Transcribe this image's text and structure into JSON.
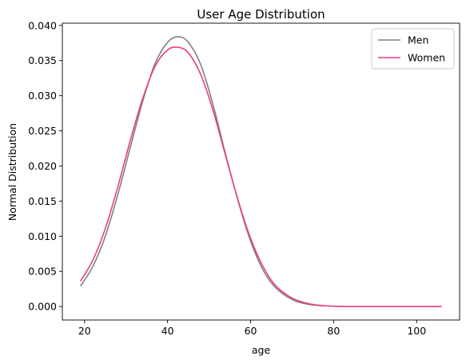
{
  "chart_data": {
    "type": "line",
    "title": "User Age Distribution",
    "xlabel": "age",
    "ylabel": "Normal Distribution",
    "xlim": [
      14.65,
      110.35
    ],
    "ylim": [
      -0.00192,
      0.04032
    ],
    "x_ticks": [
      20,
      40,
      60,
      80,
      100
    ],
    "y_ticks": [
      0.0,
      0.005,
      0.01,
      0.015,
      0.02,
      0.025,
      0.03,
      0.035,
      0.04
    ],
    "x_tick_labels": [
      "20",
      "40",
      "60",
      "80",
      "100"
    ],
    "y_tick_labels": [
      "0.000",
      "0.005",
      "0.010",
      "0.015",
      "0.020",
      "0.025",
      "0.030",
      "0.035",
      "0.040"
    ],
    "grid": false,
    "legend_position": "top-right",
    "x": [
      19,
      22,
      25,
      28,
      31,
      34,
      37,
      40,
      42.5,
      45,
      48,
      51,
      54,
      57,
      60,
      63,
      66,
      70,
      74,
      78,
      82,
      86,
      90,
      94,
      98,
      102,
      106
    ],
    "series": [
      {
        "name": "Men",
        "color": "#808080",
        "values": [
          0.0029,
          0.0057,
          0.01,
          0.0159,
          0.0226,
          0.0292,
          0.0346,
          0.0376,
          0.0384,
          0.0376,
          0.0344,
          0.0286,
          0.0216,
          0.015,
          0.0093,
          0.0052,
          0.0027,
          0.001,
          0.0003,
          0.0001,
          0.0,
          0.0,
          0.0,
          0.0,
          0.0,
          0.0,
          0.0
        ]
      },
      {
        "name": "Women",
        "color": "#ea3f85",
        "values": [
          0.0036,
          0.0066,
          0.0111,
          0.017,
          0.0236,
          0.0296,
          0.0342,
          0.0365,
          0.0369,
          0.0361,
          0.033,
          0.0278,
          0.0214,
          0.0151,
          0.0097,
          0.0057,
          0.003,
          0.0012,
          0.0004,
          0.0001,
          0.0,
          0.0,
          0.0,
          0.0,
          0.0,
          0.0,
          0.0
        ]
      }
    ]
  }
}
